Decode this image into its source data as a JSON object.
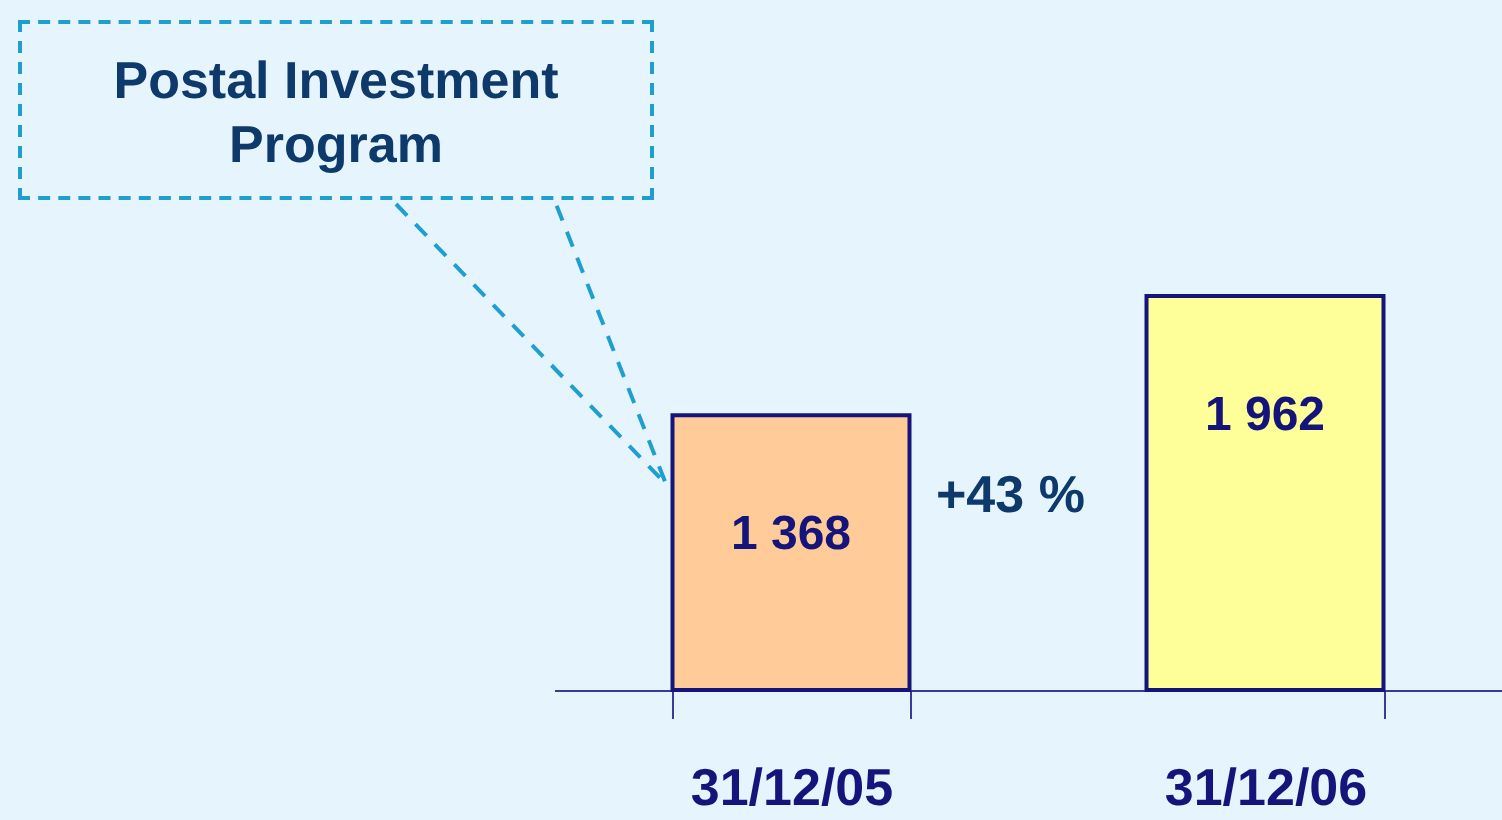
{
  "chart_data": {
    "type": "bar",
    "title": "Postal Investment Program",
    "categories": [
      "31/12/05",
      "31/12/06"
    ],
    "values": [
      1368,
      1962
    ],
    "colors": [
      "#ffcc99",
      "#ffff99"
    ],
    "value_labels": [
      "1 368",
      "1 962"
    ],
    "annotations": [
      "+43 %"
    ]
  }
}
